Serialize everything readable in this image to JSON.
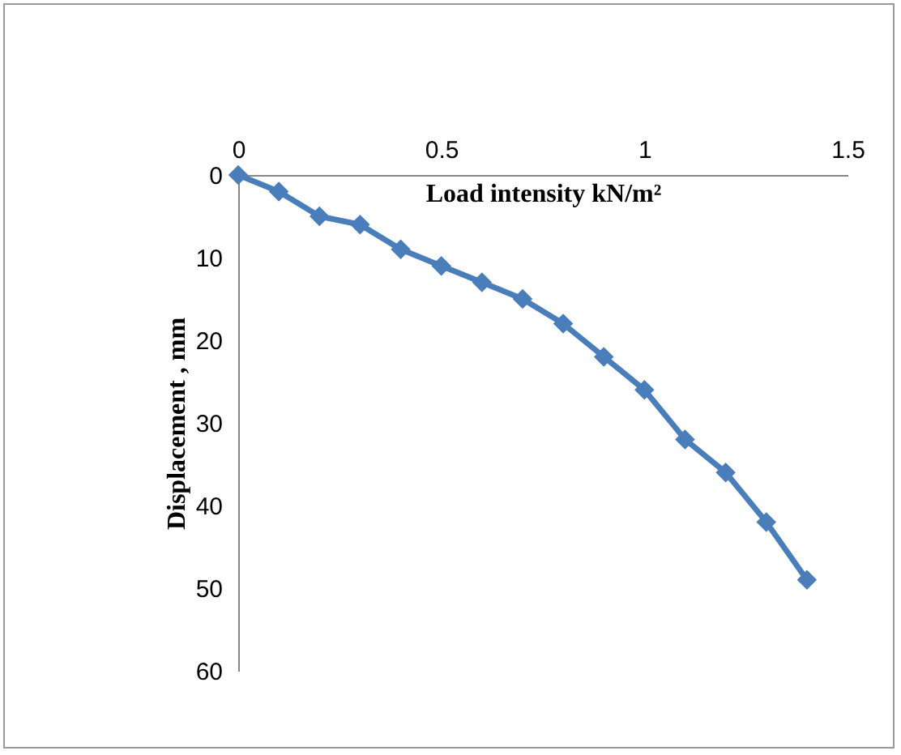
{
  "chart_data": {
    "type": "line",
    "xlabel": "Load intensity kN/m²",
    "ylabel": "Displacement , mm",
    "x": [
      0,
      0.1,
      0.2,
      0.3,
      0.4,
      0.5,
      0.6,
      0.7,
      0.8,
      0.9,
      1,
      1.1,
      1.2,
      1.3,
      1.4
    ],
    "series": [
      {
        "color": "#4a7ebb",
        "values": [
          0,
          2,
          5,
          6,
          9,
          11,
          13,
          15,
          18,
          22,
          26,
          32,
          36,
          42,
          49
        ]
      }
    ],
    "xlim": [
      0,
      1.5
    ],
    "xticks": [
      0,
      0.5,
      1,
      1.5
    ],
    "ylim": [
      60,
      0
    ],
    "yticks": [
      0,
      10,
      20,
      30,
      40,
      50,
      60
    ],
    "grid": false,
    "legend": false,
    "marker": "diamond",
    "line_style": "solid"
  }
}
